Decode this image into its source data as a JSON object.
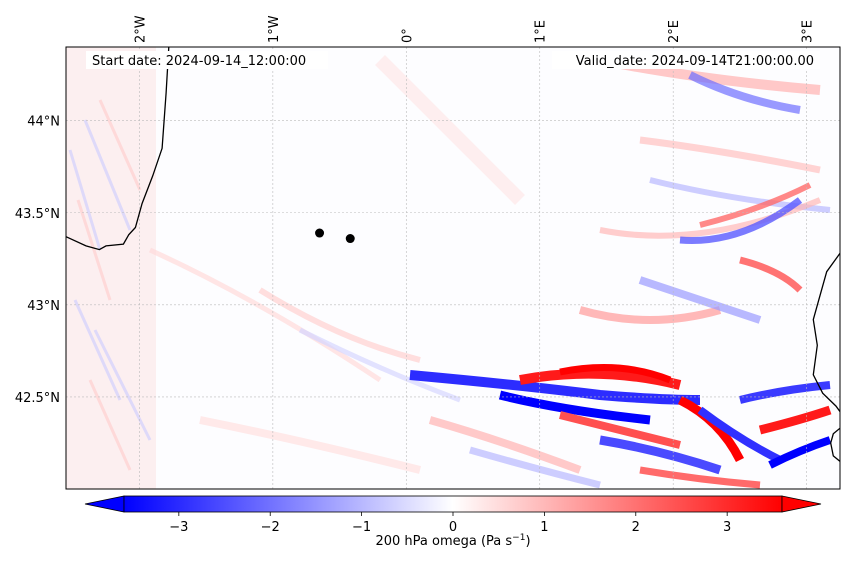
{
  "header": {
    "start_date": "Start date: 2024-09-14_12:00:00",
    "valid_date": "Valid_date: 2024-09-14T21:00:00.00"
  },
  "map": {
    "lon_range": [
      -2.55,
      3.25
    ],
    "lat_range": [
      42.0,
      44.4
    ],
    "lon_ticks": [
      {
        "value": -2,
        "label": "2°W"
      },
      {
        "value": -1,
        "label": "1°W"
      },
      {
        "value": 0,
        "label": "0°"
      },
      {
        "value": 1,
        "label": "1°E"
      },
      {
        "value": 2,
        "label": "2°E"
      },
      {
        "value": 3,
        "label": "3°E"
      }
    ],
    "lat_ticks": [
      {
        "value": 44.0,
        "label": "44°N"
      },
      {
        "value": 43.5,
        "label": "43.5°N"
      },
      {
        "value": 43.0,
        "label": "43°N"
      },
      {
        "value": 42.5,
        "label": "42.5°N"
      }
    ],
    "markers": [
      {
        "lon": -0.65,
        "lat": 43.39
      },
      {
        "lon": -0.42,
        "lat": 43.36
      }
    ],
    "coastline_west": [
      [
        -1.78,
        44.4
      ],
      [
        -1.8,
        44.15
      ],
      [
        -1.83,
        43.85
      ],
      [
        -1.9,
        43.7
      ],
      [
        -1.98,
        43.55
      ],
      [
        -2.03,
        43.42
      ],
      [
        -2.08,
        43.38
      ],
      [
        -2.12,
        43.33
      ],
      [
        -2.25,
        43.32
      ],
      [
        -2.3,
        43.3
      ],
      [
        -2.4,
        43.32
      ],
      [
        -2.55,
        43.37
      ]
    ],
    "coastline_east": [
      [
        3.25,
        43.28
      ],
      [
        3.15,
        43.18
      ],
      [
        3.1,
        43.05
      ],
      [
        3.05,
        42.92
      ],
      [
        3.08,
        42.78
      ],
      [
        3.05,
        42.62
      ],
      [
        3.12,
        42.52
      ],
      [
        3.22,
        42.45
      ],
      [
        3.25,
        42.42
      ]
    ],
    "coastline_east2": [
      [
        3.25,
        42.33
      ],
      [
        3.2,
        42.3
      ],
      [
        3.18,
        42.25
      ],
      [
        3.2,
        42.18
      ],
      [
        3.25,
        42.15
      ]
    ]
  },
  "colorbar": {
    "label": "200 hPa omega (Pa s",
    "label_sup": "−1",
    "label_end": ")",
    "vmin": -3.6,
    "vmax": 3.6,
    "ticks": [
      {
        "value": -3,
        "label": "−3"
      },
      {
        "value": -2,
        "label": "−2"
      },
      {
        "value": -1,
        "label": "−1"
      },
      {
        "value": 0,
        "label": "0"
      },
      {
        "value": 1,
        "label": "1"
      },
      {
        "value": 2,
        "label": "2"
      },
      {
        "value": 3,
        "label": "3"
      }
    ],
    "color_low": "#0000ff",
    "color_mid": "#ffffff",
    "color_high": "#ff0000"
  }
}
